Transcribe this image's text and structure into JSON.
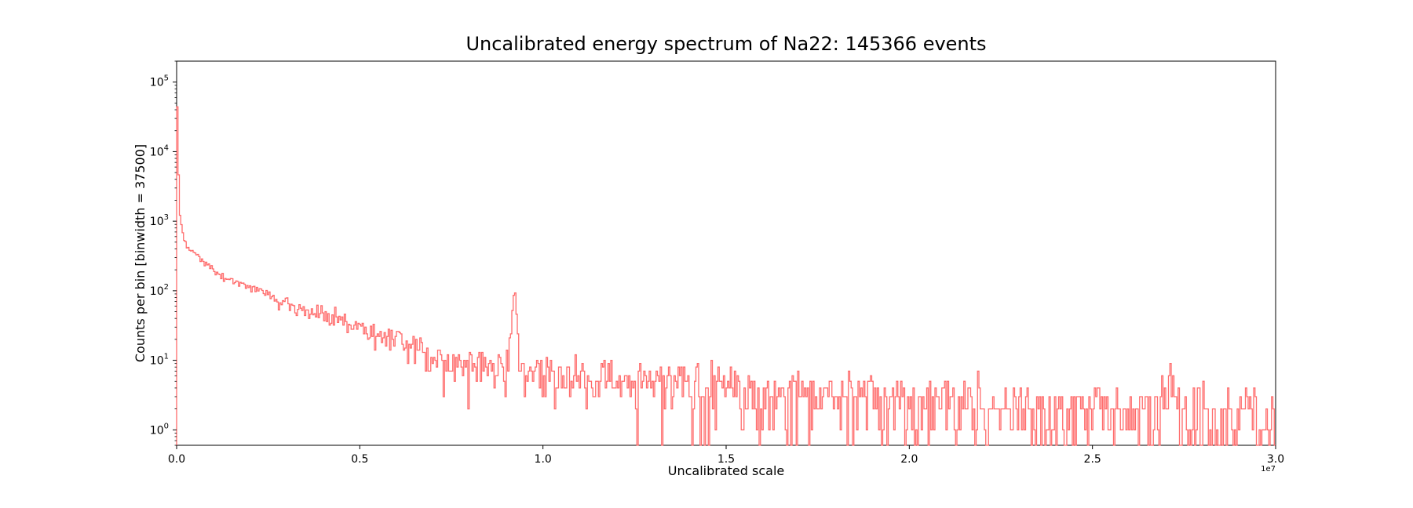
{
  "chart_data": {
    "type": "histogram",
    "title": "Uncalibrated energy spectrum of Na22:   145366 events",
    "xlabel": "Uncalibrated scale",
    "ylabel": "Counts per bin [binwidth = 37500]",
    "x_offset_label": "1e7",
    "xlim": [
      0,
      30000000
    ],
    "ylim": [
      0.6,
      200000
    ],
    "yscale": "log",
    "grid": false,
    "legend": "none",
    "x_ticks": [
      {
        "value": 0,
        "label": "0.0"
      },
      {
        "value": 5000000,
        "label": "0.5"
      },
      {
        "value": 10000000,
        "label": "1.0"
      },
      {
        "value": 15000000,
        "label": "1.5"
      },
      {
        "value": 20000000,
        "label": "2.0"
      },
      {
        "value": 25000000,
        "label": "2.5"
      },
      {
        "value": 30000000,
        "label": "3.0"
      }
    ],
    "y_ticks": [
      {
        "value": 1,
        "base": "10",
        "exp": "0"
      },
      {
        "value": 10,
        "base": "10",
        "exp": "1"
      },
      {
        "value": 100,
        "base": "10",
        "exp": "2"
      },
      {
        "value": 1000,
        "base": "10",
        "exp": "3"
      },
      {
        "value": 10000,
        "base": "10",
        "exp": "4"
      },
      {
        "value": 100000,
        "base": "10",
        "exp": "5"
      }
    ],
    "bin_width": 37500,
    "line_color": "#ff6b6b",
    "series": [
      {
        "x_points": [
          0,
          37500,
          75000,
          112500,
          150000,
          187500,
          225000,
          300000,
          400000,
          500000,
          700000,
          900000,
          1000000,
          1200000,
          1500000,
          2000000,
          2500000,
          3000000,
          3500000,
          4000000,
          4500000,
          5000000,
          5500000,
          6000000,
          6500000,
          7000000,
          7200000,
          7500000,
          8000000,
          8500000,
          8900000,
          9050000,
          9150000,
          9200000,
          9250000,
          9300000,
          9350000,
          9400000,
          9500000,
          10000000,
          11000000,
          12000000,
          13000000,
          14000000,
          15000000,
          16000000,
          17000000,
          18000000,
          19000000,
          20000000,
          21000000,
          22000000,
          23000000,
          24000000,
          25000000,
          26000000,
          26800000,
          27000000,
          27100000,
          27200000,
          27300000,
          27400000,
          27600000,
          28000000,
          29000000,
          30000000
        ],
        "y_points": [
          130000,
          15000,
          1400,
          1000,
          800,
          600,
          500,
          420,
          380,
          340,
          280,
          230,
          200,
          160,
          140,
          110,
          85,
          70,
          55,
          45,
          38,
          30,
          24,
          19,
          15,
          12,
          10,
          9,
          8.5,
          8,
          9,
          12,
          30,
          95,
          80,
          25,
          10,
          7,
          6.5,
          6,
          5.5,
          5,
          4.5,
          4,
          3.8,
          3.5,
          3.2,
          3,
          2.8,
          2.6,
          2.4,
          2.2,
          2.1,
          2,
          1.9,
          1.8,
          1.7,
          2.5,
          5,
          9,
          2.2,
          1.6,
          1.5,
          1.4,
          1.3,
          1.2
        ],
        "peaks": [
          {
            "x": 9275000,
            "y": 95
          },
          {
            "x": 27225000,
            "y": 9
          }
        ]
      }
    ]
  }
}
